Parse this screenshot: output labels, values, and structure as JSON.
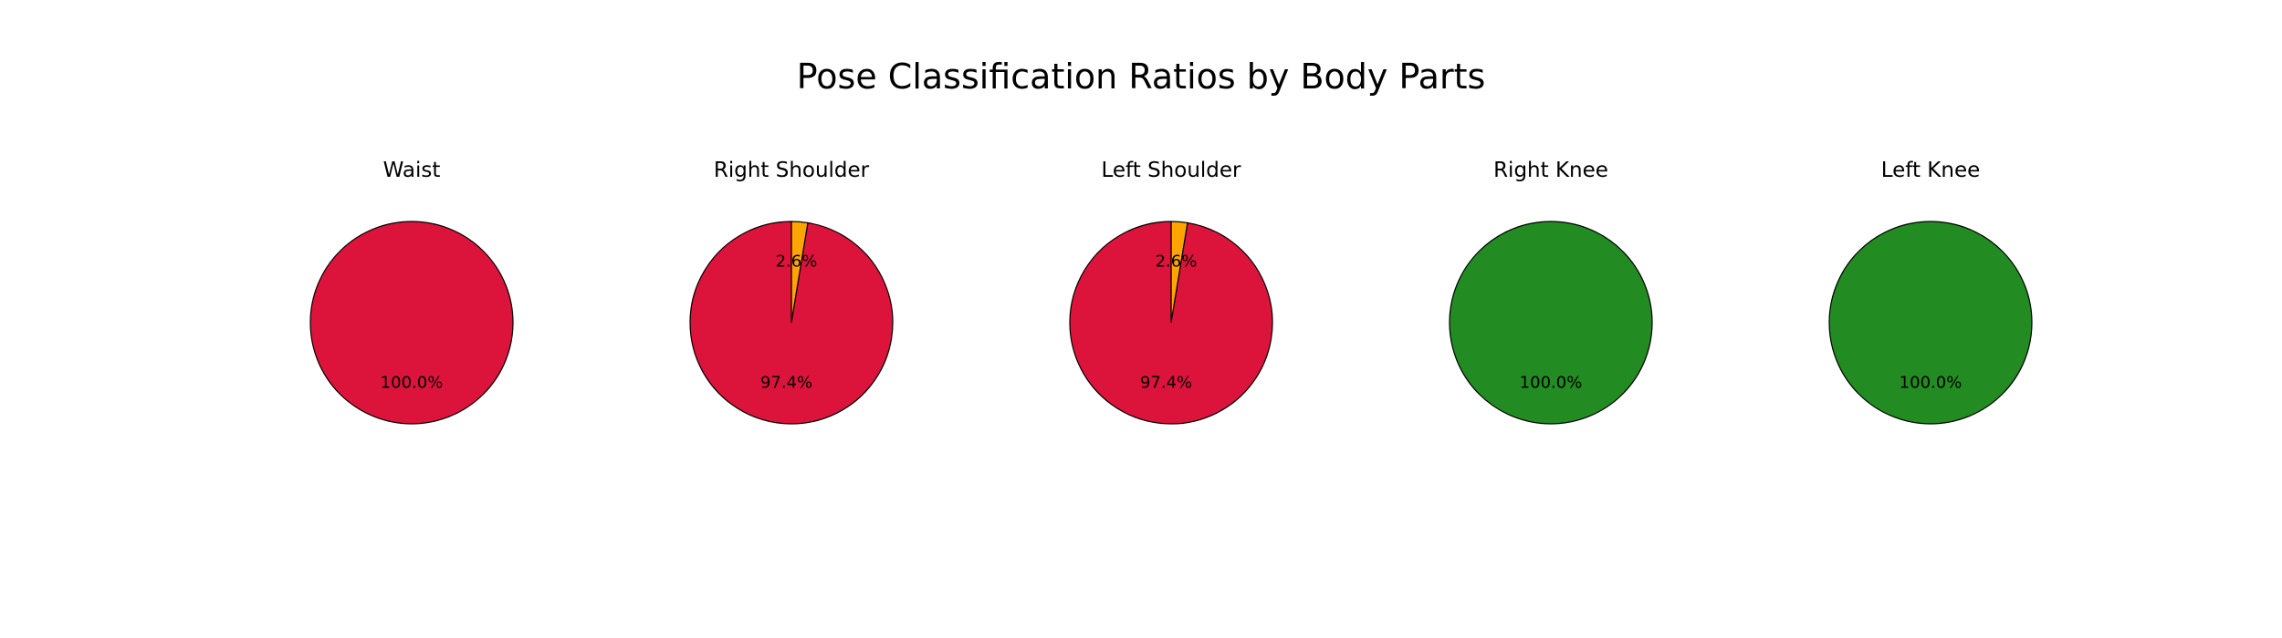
{
  "chart_data": {
    "type": "pie",
    "title": "Pose Classification Ratios by Body Parts",
    "colors": {
      "red": "#dc143c",
      "orange": "#ffa500",
      "green": "#228b22",
      "edge": "#000000"
    },
    "start_angle_deg": 90,
    "direction": "clockwise",
    "pies": [
      {
        "title": "Waist",
        "slices": [
          {
            "value": 100.0,
            "label": "100.0%",
            "color": "#dc143c"
          }
        ]
      },
      {
        "title": "Right Shoulder",
        "slices": [
          {
            "value": 2.6,
            "label": "2.6%",
            "color": "#ffa500"
          },
          {
            "value": 97.4,
            "label": "97.4%",
            "color": "#dc143c"
          }
        ]
      },
      {
        "title": "Left Shoulder",
        "slices": [
          {
            "value": 2.6,
            "label": "2.6%",
            "color": "#ffa500"
          },
          {
            "value": 97.4,
            "label": "97.4%",
            "color": "#dc143c"
          }
        ]
      },
      {
        "title": "Right Knee",
        "slices": [
          {
            "value": 100.0,
            "label": "100.0%",
            "color": "#228b22"
          }
        ]
      },
      {
        "title": "Left Knee",
        "slices": [
          {
            "value": 100.0,
            "label": "100.0%",
            "color": "#228b22"
          }
        ]
      }
    ]
  }
}
